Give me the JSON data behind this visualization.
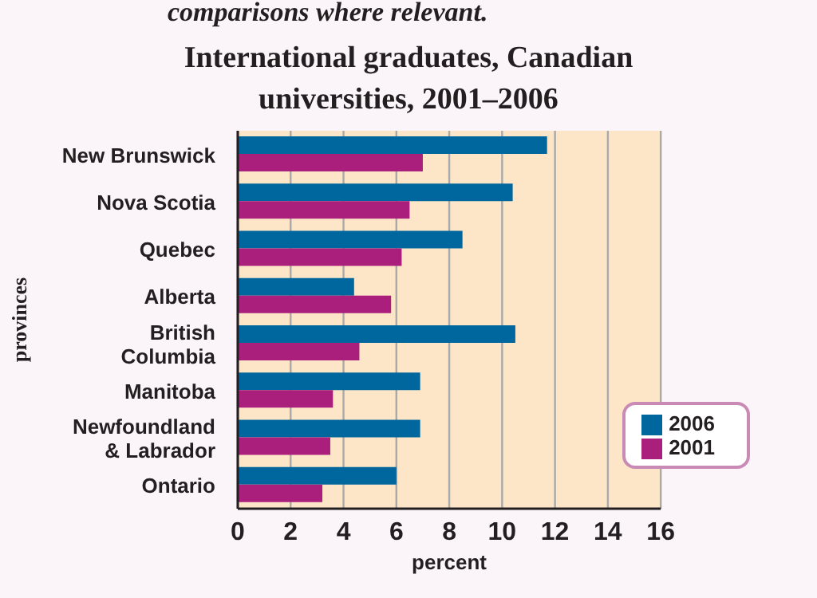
{
  "chart_data": {
    "type": "bar",
    "orientation": "horizontal",
    "title": "International graduates, Canadian universities, 2001–2006",
    "annotations": [
      "comparisons where relevant."
    ],
    "categories": [
      "New Brunswick",
      "Nova Scotia",
      "Quebec",
      "Alberta",
      "British Columbia",
      "Manitoba",
      "Newfoundland & Labrador",
      "Ontario"
    ],
    "series": [
      {
        "name": "2006",
        "color": "#00679e",
        "values": [
          11.7,
          10.4,
          8.5,
          4.4,
          10.5,
          6.9,
          6.9,
          6.0
        ]
      },
      {
        "name": "2001",
        "color": "#ab1f7c",
        "values": [
          7.0,
          6.5,
          6.2,
          5.8,
          4.6,
          3.6,
          3.5,
          3.2
        ]
      }
    ],
    "xlim": [
      0,
      16
    ],
    "xticks": [
      0,
      2,
      4,
      6,
      8,
      10,
      12,
      14,
      16
    ],
    "xlabel": "percent",
    "ylabel": "provinces",
    "grid": "x",
    "legend": "bottom right"
  }
}
